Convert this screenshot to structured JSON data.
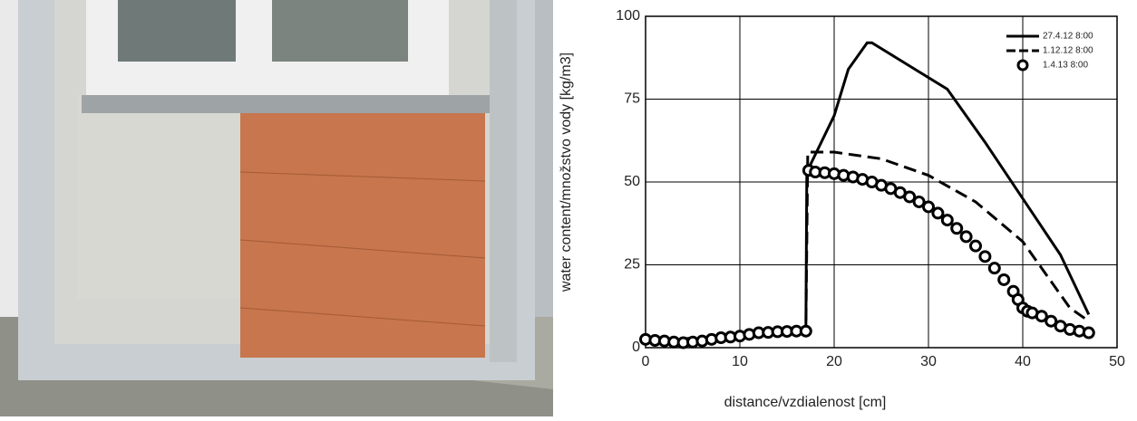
{
  "chart_data": {
    "type": "line",
    "x_label": "distance/vzdialenost [cm]",
    "y_label": "water content/množstvo vody [kg/m3]",
    "xlim": [
      0,
      50
    ],
    "xticks": [
      0,
      10,
      20,
      30,
      40,
      50
    ],
    "ylim": [
      0,
      100
    ],
    "yticks": [
      0,
      25,
      50,
      75,
      100
    ],
    "grid": true,
    "legend": "upper right",
    "series": [
      {
        "name": "27.4.12  8:00",
        "color": "#000000",
        "style": "solid",
        "x": [
          0,
          5,
          10,
          17,
          17.1,
          20,
          21.5,
          23.5,
          24,
          28,
          32,
          36,
          40,
          44,
          47
        ],
        "values": [
          2,
          2.5,
          4,
          5,
          53,
          70,
          84,
          92,
          92,
          85,
          78,
          62,
          45,
          28,
          10
        ]
      },
      {
        "name": "1.12.12  8:00",
        "color": "#000000",
        "style": "dashed",
        "x": [
          0,
          17,
          17.2,
          20,
          25,
          30,
          35,
          40,
          43,
          45,
          47
        ],
        "values": [
          2,
          5,
          59,
          59,
          57,
          52,
          44,
          32,
          20,
          12,
          8
        ]
      },
      {
        "name": "1.4.13  8:00",
        "color": "#000000",
        "style": "circles",
        "x": [
          0,
          1,
          2,
          3,
          4,
          5,
          6,
          7,
          8,
          9,
          10,
          11,
          12,
          13,
          14,
          15,
          16,
          17,
          17.3,
          18,
          19,
          20,
          21,
          22,
          23,
          24,
          25,
          26,
          27,
          28,
          29,
          30,
          31,
          32,
          33,
          34,
          35,
          36,
          37,
          38,
          39,
          39.5,
          40,
          40.5,
          41,
          42,
          43,
          44,
          45,
          46,
          47
        ],
        "values": [
          2.5,
          2.2,
          2,
          1.7,
          1.5,
          1.7,
          2,
          2.5,
          3,
          3.2,
          3.5,
          4,
          4.5,
          4.6,
          4.8,
          4.9,
          5,
          5,
          53.5,
          53,
          52.8,
          52.5,
          52,
          51.5,
          50.8,
          50,
          49,
          48,
          46.8,
          45.5,
          44,
          42.5,
          40.6,
          38.5,
          36,
          33.5,
          30.7,
          27.5,
          24,
          20.5,
          17,
          14.5,
          12,
          11,
          10.5,
          9.5,
          8,
          6.5,
          5.5,
          5,
          4.5
        ]
      }
    ]
  }
}
